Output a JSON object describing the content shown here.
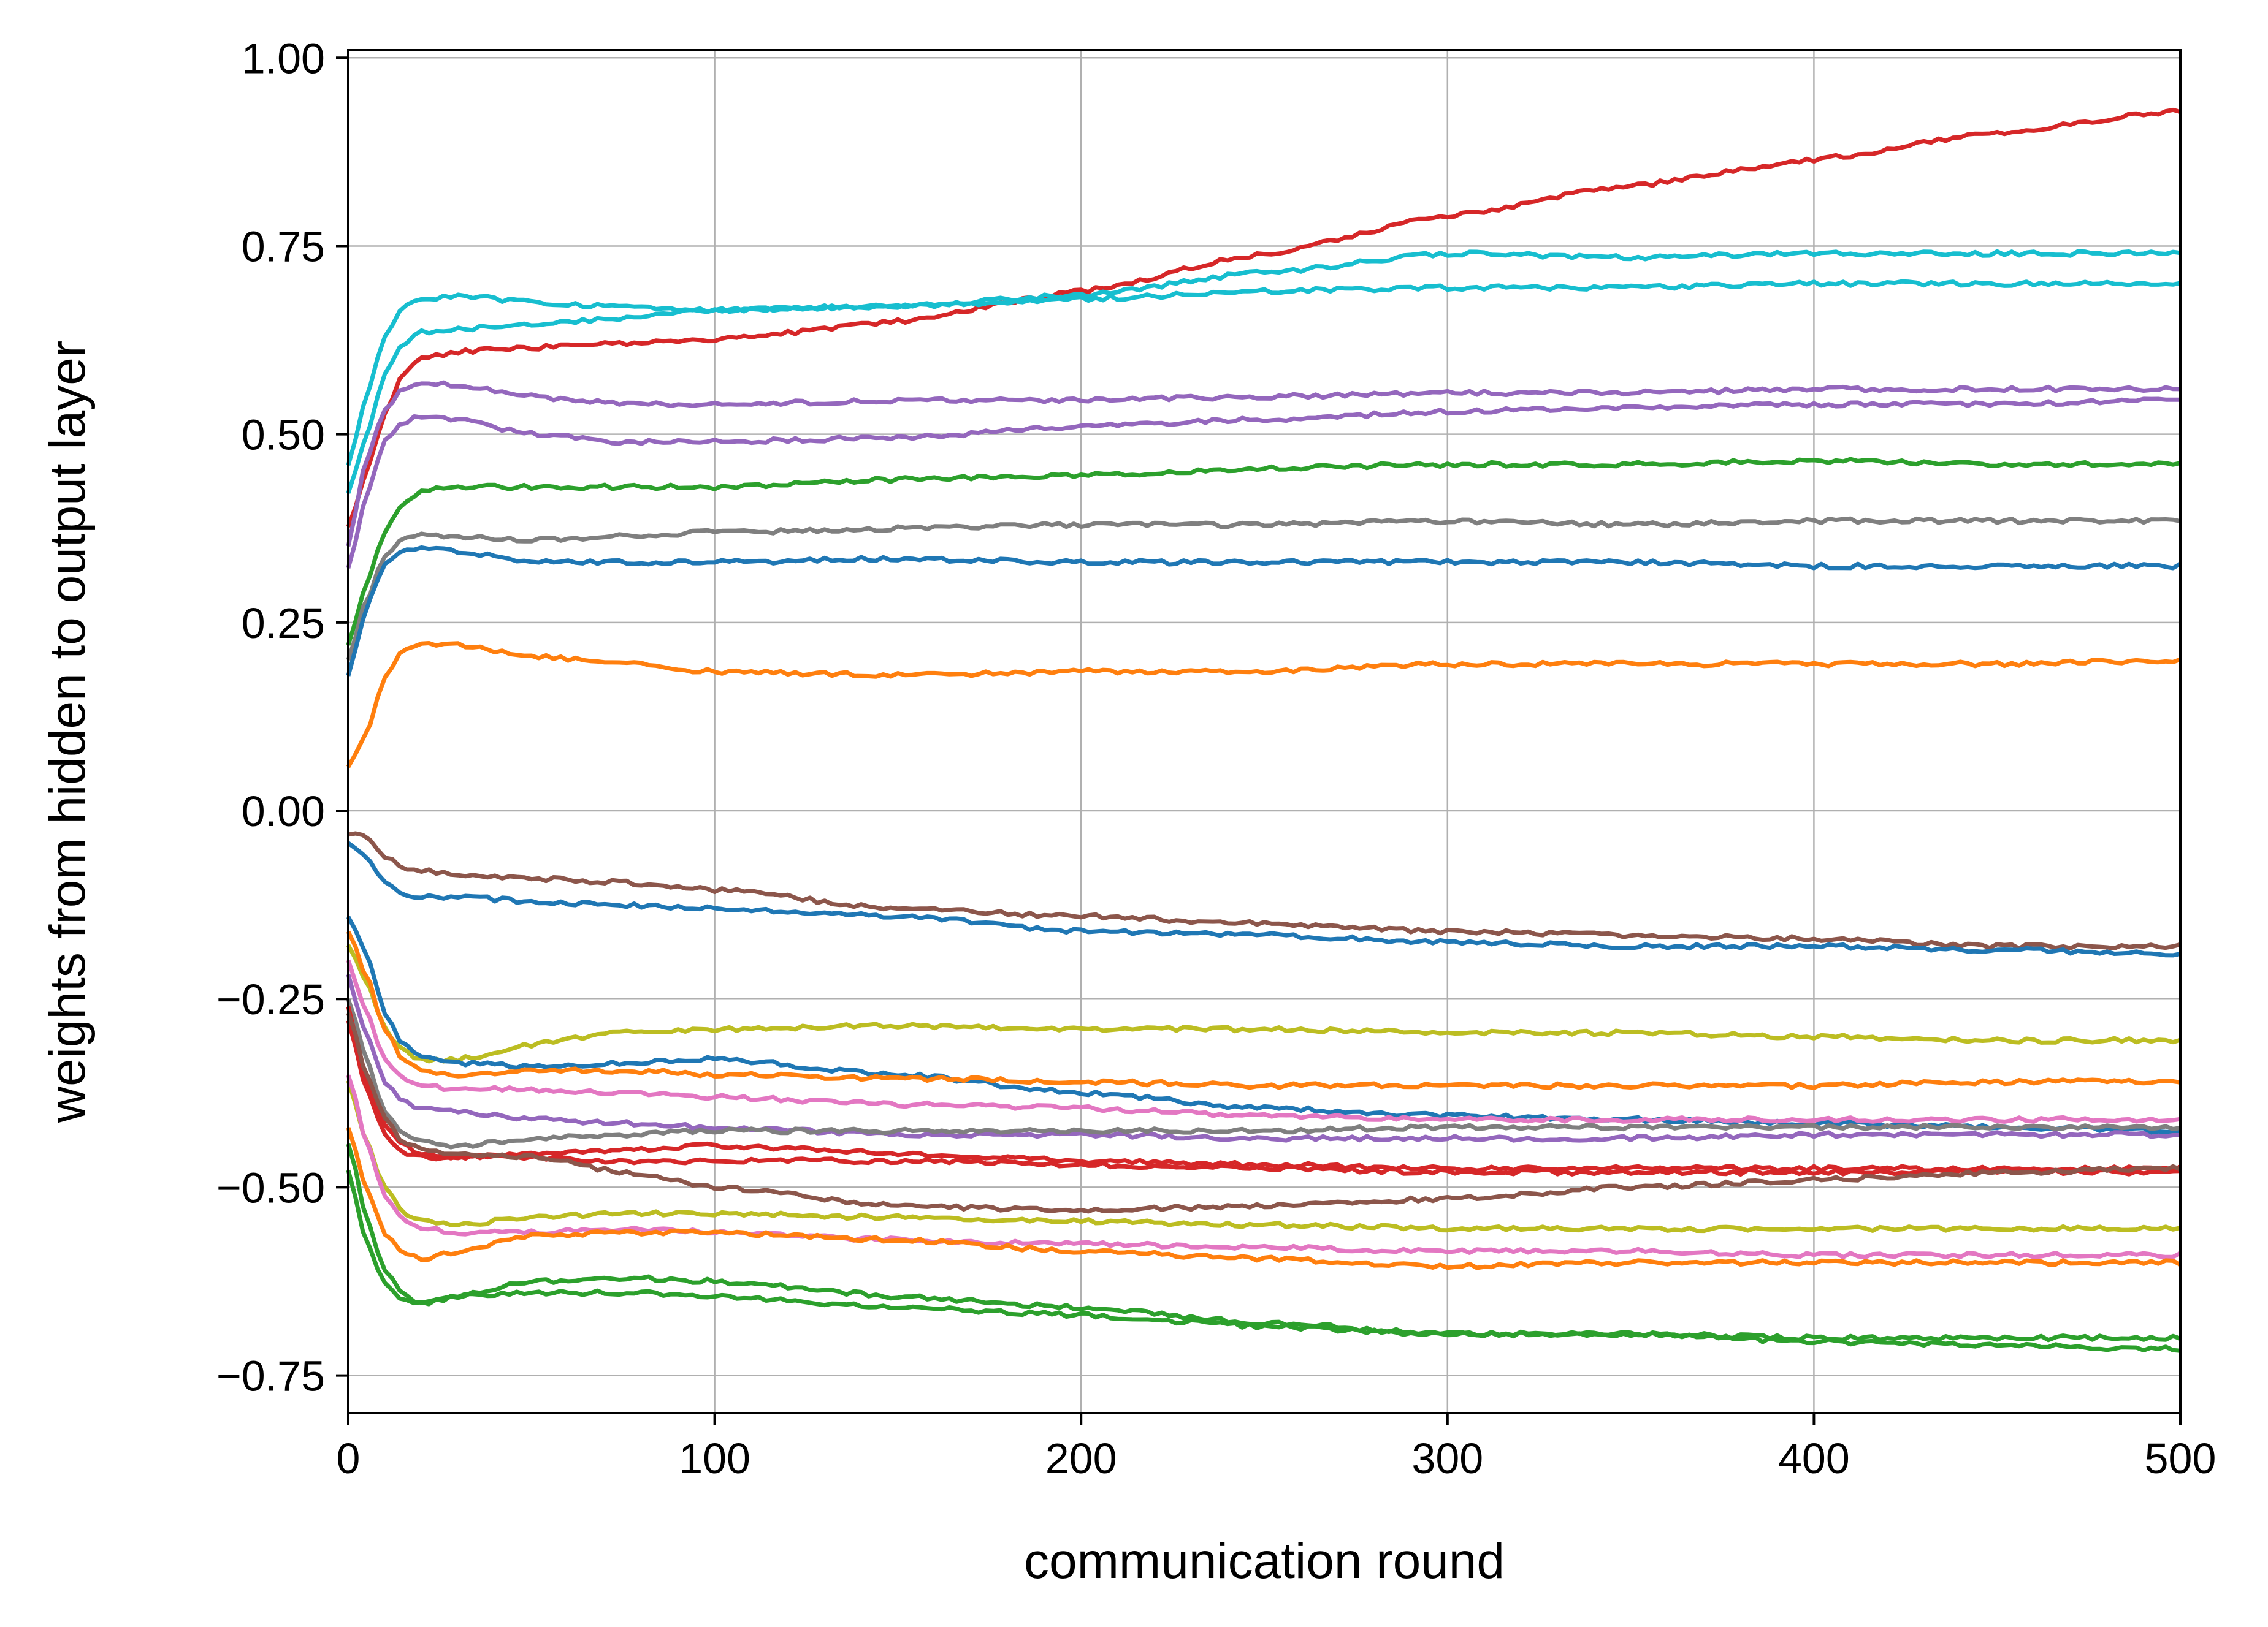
{
  "chart_data": {
    "type": "line",
    "xlabel": "communication round",
    "ylabel": "weights from hidden to output layer",
    "xlim": [
      0,
      500
    ],
    "ylim": [
      -0.8,
      1.01
    ],
    "xticks": [
      0,
      100,
      200,
      300,
      400,
      500
    ],
    "xtick_labels": [
      "0",
      "100",
      "200",
      "300",
      "400",
      "500"
    ],
    "yticks": [
      -0.75,
      -0.5,
      -0.25,
      0.0,
      0.25,
      0.5,
      0.75,
      1.0
    ],
    "ytick_labels": [
      "−0.75",
      "−0.50",
      "−0.25",
      "0.00",
      "0.25",
      "0.50",
      "0.75",
      "1.00"
    ],
    "grid": true,
    "x": [
      0,
      5,
      10,
      15,
      20,
      30,
      50,
      75,
      100,
      150,
      200,
      250,
      300,
      350,
      400,
      450,
      500
    ],
    "series": [
      {
        "color": "#d62728",
        "values": [
          0.38,
          0.45,
          0.53,
          0.58,
          0.6,
          0.61,
          0.615,
          0.62,
          0.625,
          0.65,
          0.69,
          0.74,
          0.79,
          0.83,
          0.865,
          0.9,
          0.93
        ]
      },
      {
        "color": "#17becf",
        "values": [
          0.46,
          0.55,
          0.63,
          0.67,
          0.68,
          0.685,
          0.675,
          0.67,
          0.665,
          0.67,
          0.685,
          0.715,
          0.74,
          0.735,
          0.74,
          0.74,
          0.74
        ]
      },
      {
        "color": "#17becf",
        "values": [
          0.42,
          0.5,
          0.58,
          0.62,
          0.635,
          0.64,
          0.645,
          0.655,
          0.665,
          0.67,
          0.68,
          0.69,
          0.695,
          0.695,
          0.7,
          0.7,
          0.7
        ]
      },
      {
        "color": "#9467bd",
        "values": [
          0.35,
          0.47,
          0.53,
          0.56,
          0.57,
          0.565,
          0.55,
          0.54,
          0.54,
          0.545,
          0.545,
          0.55,
          0.555,
          0.555,
          0.56,
          0.56,
          0.56
        ]
      },
      {
        "color": "#9467bd",
        "values": [
          0.32,
          0.42,
          0.49,
          0.515,
          0.525,
          0.52,
          0.5,
          0.49,
          0.49,
          0.495,
          0.51,
          0.52,
          0.53,
          0.535,
          0.54,
          0.54,
          0.545
        ]
      },
      {
        "color": "#2ca02c",
        "values": [
          0.22,
          0.3,
          0.37,
          0.41,
          0.425,
          0.43,
          0.43,
          0.43,
          0.43,
          0.44,
          0.445,
          0.455,
          0.46,
          0.46,
          0.465,
          0.46,
          0.46
        ]
      },
      {
        "color": "#7f7f7f",
        "values": [
          0.2,
          0.28,
          0.34,
          0.36,
          0.365,
          0.365,
          0.36,
          0.365,
          0.37,
          0.375,
          0.38,
          0.38,
          0.385,
          0.38,
          0.385,
          0.385,
          0.385
        ]
      },
      {
        "color": "#1f77b4",
        "values": [
          0.18,
          0.27,
          0.33,
          0.345,
          0.35,
          0.345,
          0.33,
          0.33,
          0.33,
          0.335,
          0.33,
          0.33,
          0.33,
          0.33,
          0.325,
          0.325,
          0.325
        ]
      },
      {
        "color": "#ff7f0e",
        "values": [
          0.06,
          0.1,
          0.18,
          0.215,
          0.22,
          0.22,
          0.205,
          0.195,
          0.185,
          0.18,
          0.185,
          0.185,
          0.195,
          0.195,
          0.195,
          0.195,
          0.2
        ]
      },
      {
        "color": "#8c564b",
        "values": [
          -0.03,
          -0.035,
          -0.06,
          -0.075,
          -0.08,
          -0.085,
          -0.09,
          -0.095,
          -0.105,
          -0.13,
          -0.14,
          -0.15,
          -0.16,
          -0.165,
          -0.17,
          -0.18,
          -0.18
        ]
      },
      {
        "color": "#1f77b4",
        "values": [
          -0.04,
          -0.06,
          -0.095,
          -0.11,
          -0.115,
          -0.115,
          -0.12,
          -0.125,
          -0.13,
          -0.14,
          -0.16,
          -0.165,
          -0.175,
          -0.18,
          -0.18,
          -0.185,
          -0.19
        ]
      },
      {
        "color": "#bcbd22",
        "values": [
          -0.18,
          -0.23,
          -0.29,
          -0.32,
          -0.33,
          -0.33,
          -0.31,
          -0.295,
          -0.29,
          -0.285,
          -0.29,
          -0.29,
          -0.295,
          -0.295,
          -0.3,
          -0.305,
          -0.305
        ]
      },
      {
        "color": "#1f77b4",
        "values": [
          -0.14,
          -0.19,
          -0.27,
          -0.31,
          -0.325,
          -0.335,
          -0.34,
          -0.335,
          -0.33,
          -0.35,
          -0.375,
          -0.395,
          -0.405,
          -0.41,
          -0.415,
          -0.42,
          -0.425
        ]
      },
      {
        "color": "#ff7f0e",
        "values": [
          -0.16,
          -0.22,
          -0.29,
          -0.33,
          -0.345,
          -0.35,
          -0.345,
          -0.345,
          -0.35,
          -0.355,
          -0.36,
          -0.365,
          -0.365,
          -0.365,
          -0.365,
          -0.36,
          -0.36
        ]
      },
      {
        "color": "#e377c2",
        "values": [
          -0.2,
          -0.27,
          -0.33,
          -0.355,
          -0.365,
          -0.37,
          -0.37,
          -0.375,
          -0.38,
          -0.39,
          -0.395,
          -0.405,
          -0.41,
          -0.41,
          -0.41,
          -0.41,
          -0.41
        ]
      },
      {
        "color": "#9467bd",
        "values": [
          -0.22,
          -0.3,
          -0.36,
          -0.385,
          -0.395,
          -0.4,
          -0.41,
          -0.415,
          -0.42,
          -0.43,
          -0.43,
          -0.435,
          -0.435,
          -0.435,
          -0.43,
          -0.43,
          -0.43
        ]
      },
      {
        "color": "#7f7f7f",
        "values": [
          -0.25,
          -0.33,
          -0.4,
          -0.43,
          -0.44,
          -0.445,
          -0.435,
          -0.43,
          -0.425,
          -0.425,
          -0.425,
          -0.425,
          -0.42,
          -0.42,
          -0.42,
          -0.42,
          -0.42
        ]
      },
      {
        "color": "#d62728",
        "values": [
          -0.26,
          -0.36,
          -0.42,
          -0.445,
          -0.455,
          -0.46,
          -0.455,
          -0.45,
          -0.445,
          -0.455,
          -0.465,
          -0.47,
          -0.475,
          -0.475,
          -0.475,
          -0.475,
          -0.475
        ]
      },
      {
        "color": "#d62728",
        "values": [
          -0.28,
          -0.37,
          -0.43,
          -0.455,
          -0.46,
          -0.46,
          -0.46,
          -0.465,
          -0.465,
          -0.465,
          -0.47,
          -0.475,
          -0.48,
          -0.48,
          -0.48,
          -0.48,
          -0.48
        ]
      },
      {
        "color": "#8c564b",
        "values": [
          -0.27,
          -0.35,
          -0.41,
          -0.44,
          -0.45,
          -0.455,
          -0.46,
          -0.48,
          -0.5,
          -0.525,
          -0.53,
          -0.525,
          -0.515,
          -0.5,
          -0.49,
          -0.48,
          -0.475
        ]
      },
      {
        "color": "#bcbd22",
        "values": [
          -0.36,
          -0.44,
          -0.5,
          -0.535,
          -0.545,
          -0.55,
          -0.54,
          -0.535,
          -0.535,
          -0.54,
          -0.545,
          -0.55,
          -0.555,
          -0.555,
          -0.555,
          -0.555,
          -0.555
        ]
      },
      {
        "color": "#e377c2",
        "values": [
          -0.35,
          -0.44,
          -0.51,
          -0.545,
          -0.555,
          -0.56,
          -0.56,
          -0.555,
          -0.56,
          -0.57,
          -0.575,
          -0.58,
          -0.585,
          -0.585,
          -0.59,
          -0.59,
          -0.59
        ]
      },
      {
        "color": "#ff7f0e",
        "values": [
          -0.42,
          -0.5,
          -0.56,
          -0.59,
          -0.595,
          -0.585,
          -0.565,
          -0.56,
          -0.56,
          -0.57,
          -0.585,
          -0.595,
          -0.605,
          -0.6,
          -0.6,
          -0.6,
          -0.6
        ]
      },
      {
        "color": "#2ca02c",
        "values": [
          -0.44,
          -0.54,
          -0.61,
          -0.64,
          -0.655,
          -0.645,
          -0.625,
          -0.62,
          -0.625,
          -0.645,
          -0.66,
          -0.68,
          -0.695,
          -0.695,
          -0.7,
          -0.7,
          -0.7
        ]
      },
      {
        "color": "#2ca02c",
        "values": [
          -0.48,
          -0.57,
          -0.63,
          -0.65,
          -0.655,
          -0.645,
          -0.64,
          -0.64,
          -0.645,
          -0.66,
          -0.67,
          -0.685,
          -0.695,
          -0.695,
          -0.705,
          -0.71,
          -0.715
        ]
      }
    ]
  }
}
